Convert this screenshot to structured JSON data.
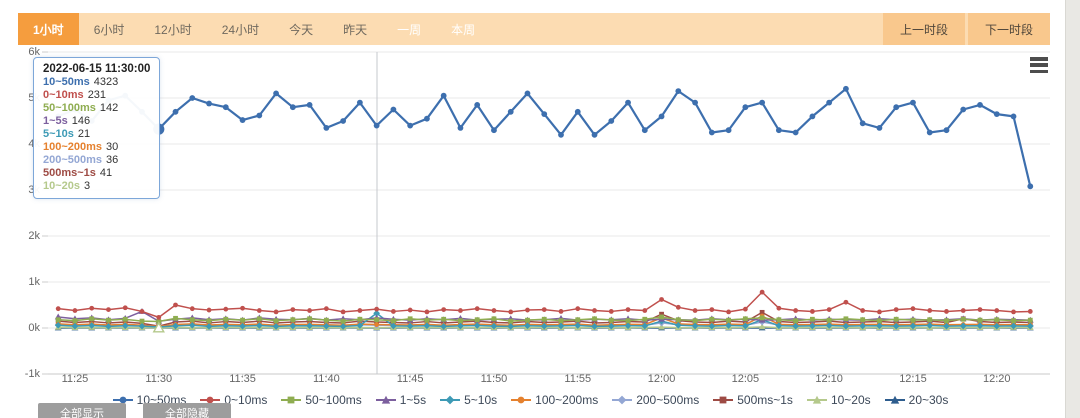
{
  "toolbar": {
    "tabs": [
      {
        "label": "1小时",
        "active": true,
        "disabled": false
      },
      {
        "label": "6小时",
        "active": false,
        "disabled": false
      },
      {
        "label": "12小时",
        "active": false,
        "disabled": false
      },
      {
        "label": "24小时",
        "active": false,
        "disabled": false
      },
      {
        "label": "今天",
        "active": false,
        "disabled": false
      },
      {
        "label": "昨天",
        "active": false,
        "disabled": false
      },
      {
        "label": "一周",
        "active": false,
        "disabled": true
      },
      {
        "label": "本周",
        "active": false,
        "disabled": true
      }
    ],
    "prev_label": "上一时段",
    "next_label": "下一时段"
  },
  "tooltip": {
    "title": "2022-06-15 11:30:00",
    "rows": [
      {
        "label": "10~50ms",
        "value": "4323",
        "color": "#3d6fae"
      },
      {
        "label": "0~10ms",
        "value": "231",
        "color": "#c0504d"
      },
      {
        "label": "50~100ms",
        "value": "142",
        "color": "#8fad51"
      },
      {
        "label": "1~5s",
        "value": "146",
        "color": "#7c5f9e"
      },
      {
        "label": "5~10s",
        "value": "21",
        "color": "#3d9ab5"
      },
      {
        "label": "100~200ms",
        "value": "30",
        "color": "#e5812e"
      },
      {
        "label": "200~500ms",
        "value": "36",
        "color": "#94a7d4"
      },
      {
        "label": "500ms~1s",
        "value": "41",
        "color": "#9e4b44"
      },
      {
        "label": "10~20s",
        "value": "3",
        "color": "#b5c98c"
      }
    ]
  },
  "footer": {
    "show_all_label": "全部显示",
    "hide_all_label": "全部隐藏"
  },
  "icons": {
    "menu_icon": "hamburger-menu-icon"
  },
  "chart_data": {
    "type": "line",
    "title": "",
    "xlabel": "",
    "ylabel": "",
    "ylim": [
      -1000,
      6000
    ],
    "grid": true,
    "legend_position": "bottom",
    "y_ticks": [
      "6k",
      "5k",
      "4k",
      "3k",
      "2k",
      "1k",
      "0k",
      "-1k"
    ],
    "x_axis_ticks": [
      "11:25",
      "11:30",
      "11:35",
      "11:40",
      "11:45",
      "11:50",
      "11:55",
      "12:00",
      "12:05",
      "12:10",
      "12:15",
      "12:20"
    ],
    "x": [
      "11:24",
      "11:25",
      "11:26",
      "11:27",
      "11:28",
      "11:29",
      "11:30",
      "11:31",
      "11:32",
      "11:33",
      "11:34",
      "11:35",
      "11:36",
      "11:37",
      "11:38",
      "11:39",
      "11:40",
      "11:41",
      "11:42",
      "11:43",
      "11:44",
      "11:45",
      "11:46",
      "11:47",
      "11:48",
      "11:49",
      "11:50",
      "11:51",
      "11:52",
      "11:53",
      "11:54",
      "11:55",
      "11:56",
      "11:57",
      "11:58",
      "11:59",
      "12:00",
      "12:01",
      "12:02",
      "12:03",
      "12:04",
      "12:05",
      "12:06",
      "12:07",
      "12:08",
      "12:09",
      "12:10",
      "12:11",
      "12:12",
      "12:13",
      "12:14",
      "12:15",
      "12:16",
      "12:17",
      "12:18",
      "12:19",
      "12:20",
      "12:21",
      "12:22"
    ],
    "highlight": {
      "series": "10~50ms",
      "time": "11:30",
      "index": 6,
      "value": 4323
    },
    "series": [
      {
        "name": "10~50ms",
        "color": "#3d6fae",
        "symbol": "circle",
        "values": [
          4600,
          4750,
          4500,
          4950,
          5050,
          4700,
          4323,
          4700,
          5000,
          4880,
          4800,
          4520,
          4620,
          5100,
          4800,
          4850,
          4350,
          4500,
          4900,
          4400,
          4750,
          4400,
          4550,
          5050,
          4350,
          4850,
          4300,
          4700,
          5100,
          4650,
          4200,
          4700,
          4200,
          4500,
          4900,
          4300,
          4600,
          5150,
          4900,
          4250,
          4300,
          4800,
          4900,
          4300,
          4250,
          4600,
          4900,
          5200,
          4450,
          4350,
          4800,
          4900,
          4250,
          4300,
          4750,
          4850,
          4650,
          4600,
          3080
        ]
      },
      {
        "name": "0~10ms",
        "color": "#c0504d",
        "symbol": "circle",
        "values": [
          420,
          380,
          430,
          400,
          440,
          360,
          231,
          500,
          420,
          390,
          410,
          430,
          380,
          350,
          400,
          380,
          420,
          350,
          380,
          410,
          360,
          390,
          350,
          400,
          380,
          420,
          380,
          350,
          390,
          400,
          360,
          420,
          380,
          360,
          400,
          380,
          620,
          450,
          380,
          400,
          350,
          410,
          780,
          430,
          380,
          360,
          400,
          560,
          380,
          350,
          400,
          420,
          380,
          360,
          380,
          400,
          380,
          350,
          360
        ]
      },
      {
        "name": "50~100ms",
        "color": "#8fad51",
        "symbol": "rect",
        "values": [
          180,
          160,
          200,
          170,
          190,
          150,
          142,
          210,
          180,
          160,
          190,
          170,
          200,
          160,
          180,
          200,
          170,
          150,
          190,
          180,
          160,
          200,
          170,
          190,
          160,
          180,
          200,
          150,
          170,
          190,
          160,
          180,
          200,
          170,
          160,
          190,
          240,
          180,
          160,
          190,
          170,
          200,
          220,
          180,
          160,
          190,
          170,
          200,
          180,
          160,
          190,
          170,
          180,
          160,
          190,
          170,
          180,
          160,
          170
        ]
      },
      {
        "name": "1~5s",
        "color": "#7c5f9e",
        "symbol": "triangle",
        "values": [
          240,
          200,
          220,
          180,
          210,
          360,
          146,
          190,
          220,
          180,
          200,
          170,
          220,
          190,
          180,
          210,
          170,
          200,
          180,
          220,
          190,
          170,
          200,
          180,
          210,
          170,
          190,
          200,
          170,
          180,
          210,
          170,
          190,
          180,
          200,
          170,
          190,
          180,
          170,
          200,
          180,
          190,
          170,
          180,
          200,
          170,
          190,
          180,
          170,
          200,
          180,
          190,
          170,
          180,
          200,
          170,
          190,
          180,
          170
        ]
      },
      {
        "name": "5~10s",
        "color": "#3d9ab5",
        "symbol": "diamond",
        "values": [
          60,
          40,
          55,
          35,
          50,
          40,
          21,
          45,
          60,
          35,
          50,
          40,
          55,
          35,
          45,
          50,
          40,
          35,
          55,
          320,
          45,
          40,
          50,
          35,
          45,
          55,
          40,
          35,
          50,
          40,
          45,
          55,
          35,
          40,
          50,
          45,
          150,
          60,
          45,
          40,
          55,
          45,
          180,
          50,
          40,
          45,
          55,
          40,
          45,
          50,
          40,
          45,
          55,
          40,
          45,
          50,
          40,
          45,
          40
        ]
      },
      {
        "name": "100~200ms",
        "color": "#e5812e",
        "symbol": "circle",
        "values": [
          90,
          70,
          85,
          65,
          80,
          60,
          30,
          75,
          90,
          65,
          80,
          70,
          85,
          60,
          75,
          80,
          70,
          60,
          85,
          75,
          70,
          65,
          80,
          60,
          75,
          85,
          70,
          60,
          80,
          70,
          75,
          85,
          60,
          70,
          80,
          75,
          220,
          90,
          75,
          70,
          85,
          75,
          260,
          80,
          70,
          75,
          85,
          70,
          75,
          80,
          70,
          75,
          85,
          70,
          75,
          80,
          70,
          75,
          70
        ]
      },
      {
        "name": "200~500ms",
        "color": "#94a7d4",
        "symbol": "diamond",
        "values": [
          70,
          55,
          65,
          50,
          60,
          45,
          36,
          60,
          70,
          50,
          65,
          55,
          70,
          50,
          60,
          65,
          55,
          50,
          70,
          60,
          55,
          50,
          65,
          50,
          60,
          70,
          55,
          50,
          65,
          55,
          60,
          70,
          50,
          55,
          65,
          60,
          110,
          70,
          60,
          55,
          70,
          60,
          130,
          65,
          55,
          60,
          70,
          55,
          60,
          65,
          55,
          60,
          70,
          55,
          60,
          65,
          55,
          60,
          55
        ]
      },
      {
        "name": "500ms~1s",
        "color": "#9e4b44",
        "symbol": "rect",
        "values": [
          150,
          120,
          140,
          110,
          130,
          100,
          41,
          130,
          150,
          110,
          140,
          120,
          150,
          110,
          130,
          140,
          120,
          110,
          150,
          130,
          120,
          110,
          140,
          110,
          130,
          150,
          120,
          110,
          140,
          120,
          130,
          150,
          110,
          120,
          140,
          130,
          300,
          160,
          130,
          120,
          150,
          130,
          340,
          140,
          120,
          130,
          150,
          120,
          130,
          140,
          120,
          130,
          150,
          120,
          200,
          140,
          120,
          130,
          120
        ]
      },
      {
        "name": "10~20s",
        "color": "#b5c98c",
        "symbol": "triangle",
        "values": [
          15,
          8,
          12,
          6,
          10,
          5,
          3,
          12,
          8,
          6,
          10,
          8,
          12,
          6,
          8,
          10,
          8,
          6,
          12,
          8,
          10,
          6,
          8,
          12,
          6,
          8,
          10,
          6,
          8,
          12,
          8,
          6,
          10,
          8,
          6,
          12,
          20,
          8,
          6,
          10,
          8,
          12,
          25,
          8,
          6,
          10,
          12,
          8,
          6,
          10,
          8,
          12,
          6,
          8,
          10,
          8,
          6,
          12,
          8
        ]
      },
      {
        "name": "20~30s",
        "color": "#2e5d8e",
        "symbol": "triangle",
        "values": [
          0,
          0,
          0,
          0,
          0,
          0,
          0,
          0,
          0,
          0,
          0,
          0,
          0,
          0,
          0,
          0,
          0,
          0,
          0,
          0,
          0,
          0,
          0,
          0,
          0,
          0,
          0,
          0,
          0,
          0,
          0,
          0,
          0,
          0,
          0,
          0,
          0,
          0,
          0,
          0,
          0,
          0,
          0,
          0,
          0,
          0,
          0,
          0,
          0,
          0,
          0,
          0,
          0,
          0,
          0,
          0,
          0,
          0,
          0
        ]
      }
    ]
  }
}
